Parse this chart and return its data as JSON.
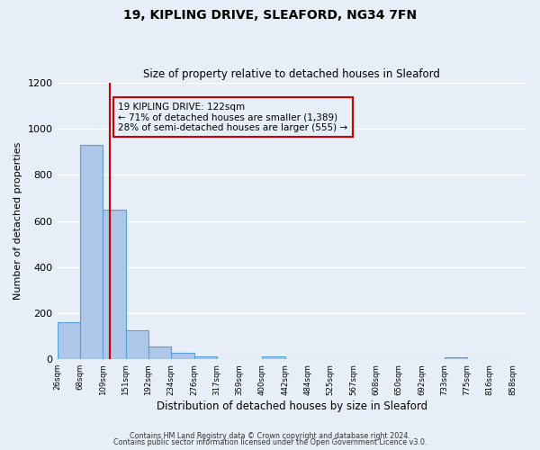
{
  "title_line1": "19, KIPLING DRIVE, SLEAFORD, NG34 7FN",
  "title_line2": "Size of property relative to detached houses in Sleaford",
  "xlabel": "Distribution of detached houses by size in Sleaford",
  "ylabel": "Number of detached properties",
  "footer_line1": "Contains HM Land Registry data © Crown copyright and database right 2024.",
  "footer_line2": "Contains public sector information licensed under the Open Government Licence v3.0.",
  "annotation_line1": "19 KIPLING DRIVE: 122sqm",
  "annotation_line2": "← 71% of detached houses are smaller (1,389)",
  "annotation_line3": "28% of semi-detached houses are larger (555) →",
  "property_size": 122,
  "bin_edges": [
    26,
    68,
    109,
    151,
    192,
    234,
    276,
    317,
    359,
    400,
    442,
    484,
    525,
    567,
    608,
    650,
    692,
    733,
    775,
    816,
    858
  ],
  "bar_heights": [
    160,
    930,
    650,
    125,
    57,
    28,
    12,
    0,
    0,
    12,
    0,
    0,
    0,
    0,
    0,
    0,
    0,
    10,
    0,
    0
  ],
  "bar_color": "#aec6e8",
  "bar_edge_color": "#5a9fd4",
  "vline_color": "#cc0000",
  "vline_x": 122,
  "annotation_box_edge_color": "#cc0000",
  "background_color": "#e8eef8",
  "grid_color": "#ffffff",
  "ylim": [
    0,
    1200
  ],
  "yticks": [
    0,
    200,
    400,
    600,
    800,
    1000,
    1200
  ]
}
